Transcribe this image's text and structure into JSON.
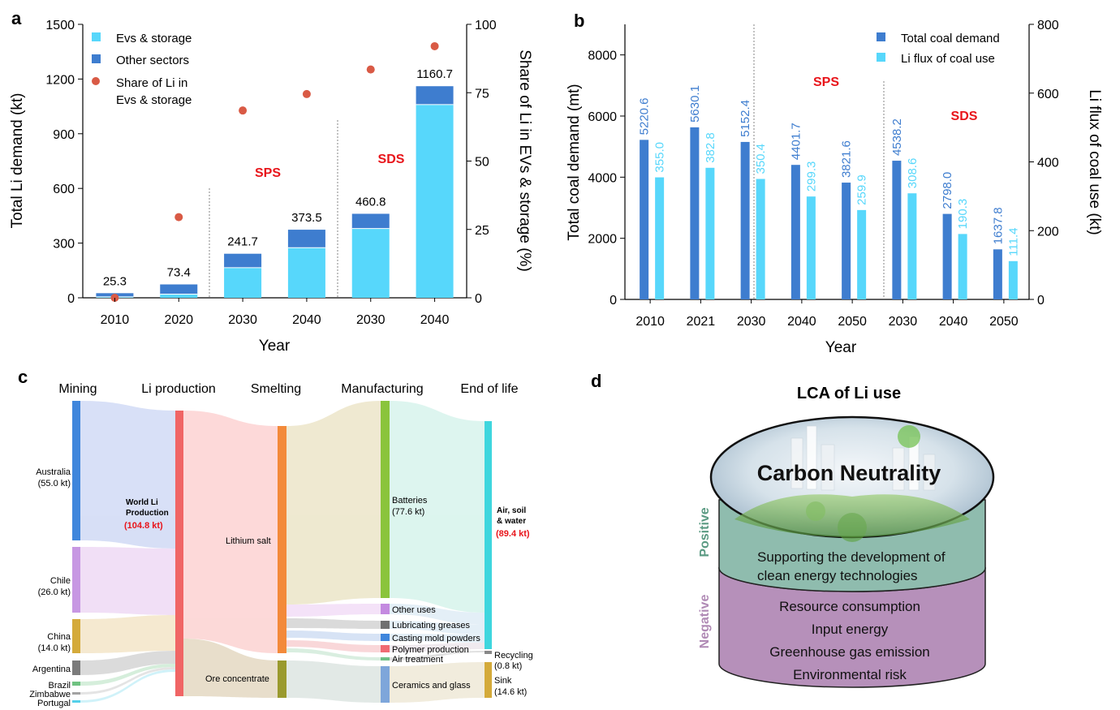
{
  "colors": {
    "evs": "#57d7fb",
    "other": "#3e7dcf",
    "share": "#d95a45",
    "total_coal": "#3e7dcf",
    "li_flux": "#57d7fb",
    "scenario": "#e8141a",
    "text_blue": "#3e7dcf",
    "text_cyan": "#57d7fb",
    "positive": "#8fbcae",
    "negative": "#b690ba",
    "positive_label": "#5a9a82",
    "negative_label": "#b08ab5"
  },
  "chart_data": [
    {
      "panel": "a",
      "type": "bar",
      "stacked": true,
      "categories": [
        "2010",
        "2020",
        "2030",
        "2040",
        "2030",
        "2040"
      ],
      "series": [
        {
          "name": "Evs & storage",
          "values": [
            5,
            20,
            165,
            275,
            380,
            1060
          ]
        },
        {
          "name": "Other sectors",
          "values": [
            20.3,
            53.4,
            76.7,
            98.5,
            80.8,
            100.7
          ]
        }
      ],
      "totals": [
        "25.3",
        "73.4",
        "241.7",
        "373.5",
        "460.8",
        "1160.7"
      ],
      "secondary": {
        "name": "Share of Li in Evs & storage",
        "values": [
          0,
          29.5,
          68.5,
          74.5,
          83.5,
          92
        ]
      },
      "xlabel": "Year",
      "ylabel": "Total Li demand (kt)",
      "ylabel_right": "Share of Li in EVs & storage (%)",
      "ylim": [
        0,
        1500
      ],
      "yticks": [
        "0",
        "300",
        "600",
        "900",
        "1200",
        "1500"
      ],
      "ylim_right": [
        0,
        100
      ],
      "yticks_right": [
        "0",
        "25",
        "50",
        "75",
        "100"
      ],
      "annotations": [
        "SPS",
        "SDS"
      ],
      "legend_position": "top-left"
    },
    {
      "panel": "b",
      "type": "bar",
      "categories": [
        "2010",
        "2021",
        "2030",
        "2040",
        "2050",
        "2030",
        "2040",
        "2050"
      ],
      "series": [
        {
          "name": "Total coal demand",
          "values": [
            5220.6,
            5630.1,
            5152.4,
            4401.7,
            3821.6,
            4538.2,
            2798.0,
            1637.8
          ]
        },
        {
          "name": "Li flux of coal use",
          "values": [
            355.0,
            382.8,
            350.4,
            299.3,
            259.9,
            308.6,
            190.3,
            111.4
          ]
        }
      ],
      "labels_total": [
        "5220.6",
        "5630.1",
        "5152.4",
        "4401.7",
        "3821.6",
        "4538.2",
        "2798.0",
        "1637.8"
      ],
      "labels_li": [
        "355.0",
        "382.8",
        "350.4",
        "299.3",
        "259.9",
        "308.6",
        "190.3",
        "111.4"
      ],
      "xlabel": "Year",
      "ylabel": "Total coal demand (mt)",
      "ylabel_right": "Li flux of coal use (kt)",
      "ylim": [
        0,
        9000
      ],
      "yticks": [
        "0",
        "2000",
        "4000",
        "6000",
        "8000"
      ],
      "ylim_right": [
        0,
        800
      ],
      "yticks_right": [
        "0",
        "200",
        "400",
        "600",
        "800"
      ],
      "annotations": [
        "SPS",
        "SDS"
      ],
      "legend_position": "top-right"
    }
  ],
  "panels": {
    "a": {
      "label": "a",
      "legend": [
        "Evs & storage",
        "Other sectors",
        "Share of Li in",
        "Evs & storage"
      ],
      "scenario_sps": "SPS",
      "scenario_sds": "SDS"
    },
    "b": {
      "label": "b",
      "legend": [
        "Total coal demand",
        "Li flux of coal use"
      ],
      "scenario_sps": "SPS",
      "scenario_sds": "SDS"
    },
    "c": {
      "label": "c",
      "stages": [
        "Mining",
        "Li  production",
        "Smelting",
        "Manufacturing",
        "End of life"
      ],
      "mining": [
        {
          "name": "Australia",
          "amount": "(55.0 kt)",
          "color": "#3f86dc"
        },
        {
          "name": "Chile",
          "amount": "(26.0 kt)",
          "color": "#c797e3"
        },
        {
          "name": "China",
          "amount": "(14.0 kt)",
          "color": "#d4aa3a"
        },
        {
          "name": "Argentina",
          "amount": "",
          "color": "#7b7b7b"
        },
        {
          "name": "Brazil",
          "amount": "",
          "color": "#6fc281"
        },
        {
          "name": "Zimbabwe",
          "amount": "",
          "color": "#a2a2a2"
        },
        {
          "name": "Portugal",
          "amount": "",
          "color": "#55d0ea"
        }
      ],
      "world_li": {
        "line1": "World Li",
        "line2": "Production",
        "value": "(104.8 kt)"
      },
      "smelting": [
        {
          "name": "Lithium salt",
          "color": "#f38a3a"
        },
        {
          "name": "Ore concentrate",
          "color": "#9a9a2e"
        }
      ],
      "manufacturing": [
        {
          "name": "Batteries",
          "amount": "(77.6 kt)",
          "color": "#8ac43c"
        },
        {
          "name": "Other uses",
          "amount": "",
          "color": "#c48ae0"
        },
        {
          "name": "Lubricating greases",
          "amount": "",
          "color": "#707070"
        },
        {
          "name": "Casting mold powders",
          "amount": "",
          "color": "#3f86dc"
        },
        {
          "name": "Polymer production",
          "amount": "",
          "color": "#f06b73"
        },
        {
          "name": "Air treatment",
          "amount": "",
          "color": "#6fbf86"
        },
        {
          "name": "Ceramics and glass",
          "amount": "",
          "color": "#7ea6da"
        }
      ],
      "end_of_life": [
        {
          "name": "Air, soil",
          "name2": "& water",
          "amount": "(89.4 kt)",
          "color": "#3fd6de"
        },
        {
          "name": "Recycling",
          "amount": "(0.8 kt)",
          "color": "#888888"
        },
        {
          "name": "Sink",
          "amount": "(14.6 kt)",
          "color": "#d4aa3a"
        }
      ]
    },
    "d": {
      "label": "d",
      "title": "LCA of Li use",
      "center_text": "Carbon Neutrality",
      "positive_label": "Positive",
      "negative_label": "Negative",
      "positive_lines": [
        "Supporting the development of",
        "clean energy technologies"
      ],
      "negative_lines": [
        "Resource consumption",
        "Input energy",
        "Greenhouse gas emission",
        "Environmental risk"
      ]
    }
  }
}
